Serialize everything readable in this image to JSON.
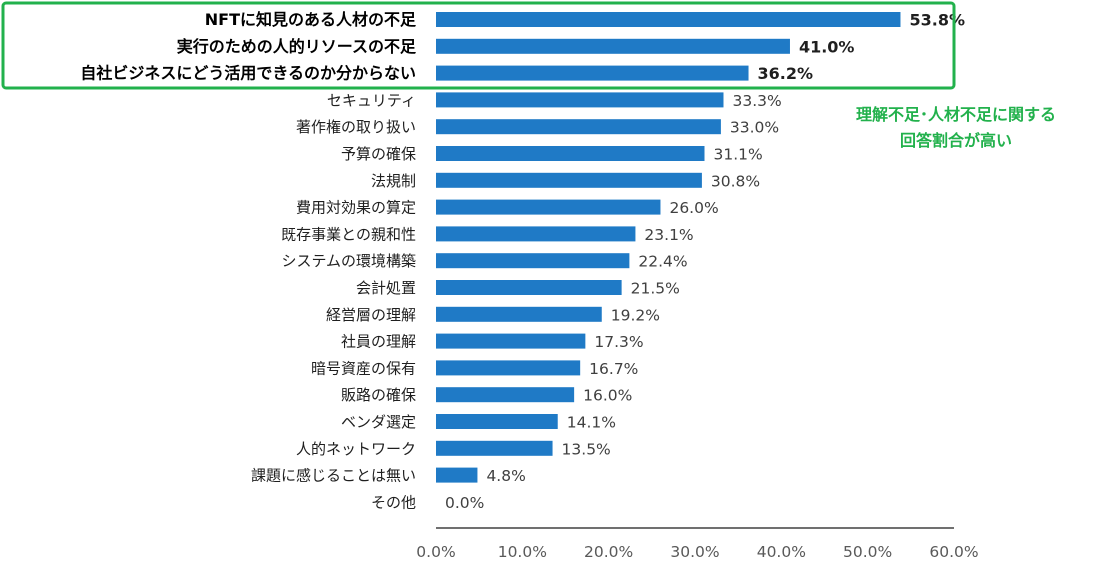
{
  "chart_data": {
    "type": "bar",
    "orientation": "horizontal",
    "title": "",
    "xlabel": "",
    "ylabel": "",
    "xlim": [
      0,
      60
    ],
    "x_ticks": [
      "0.0%",
      "10.0%",
      "20.0%",
      "30.0%",
      "40.0%",
      "50.0%",
      "60.0%"
    ],
    "grid": false,
    "bar_color": "#1f7ac6",
    "highlight_color": "#22b14c",
    "categories": [
      "NFTに知見のある人材の不足",
      "実行のための人的リソースの不足",
      "自社ビジネスにどう活用できるのか分からない",
      "セキュリティ",
      "著作権の取り扱い",
      "予算の確保",
      "法規制",
      "費用対効果の算定",
      "既存事業との親和性",
      "システムの環境構築",
      "会計処置",
      "経営層の理解",
      "社員の理解",
      "暗号資産の保有",
      "販路の確保",
      "ベンダ選定",
      "人的ネットワーク",
      "課題に感じることは無い",
      "その他"
    ],
    "values": [
      53.8,
      41.0,
      36.2,
      33.3,
      33.0,
      31.1,
      30.8,
      26.0,
      23.1,
      22.4,
      21.5,
      19.2,
      17.3,
      16.7,
      16.0,
      14.1,
      13.5,
      4.8,
      0.0
    ],
    "value_labels": [
      "53.8%",
      "41.0%",
      "36.2%",
      "33.3%",
      "33.0%",
      "31.1%",
      "30.8%",
      "26.0%",
      "23.1%",
      "22.4%",
      "21.5%",
      "19.2%",
      "17.3%",
      "16.7%",
      "16.0%",
      "14.1%",
      "13.5%",
      "4.8%",
      "0.0%"
    ],
    "highlighted_count": 3,
    "annotation": {
      "line1": "理解不足･人材不足に関する",
      "line2": "回答割合が高い"
    }
  }
}
